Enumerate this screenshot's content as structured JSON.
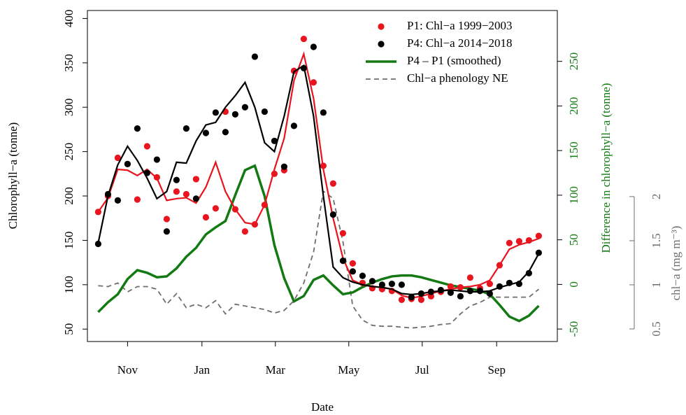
{
  "chart_data": {
    "type": "line",
    "xlabel": "Date",
    "ylabel": "Chlorophyll−a (tonne)",
    "y2label": "Difference in chlorophyll−a (tonne)",
    "y3label": "chl−a  (mg m⁻³)",
    "x": [
      1,
      2,
      3,
      4,
      5,
      6,
      7,
      8,
      9,
      10,
      11,
      12,
      13,
      14,
      15,
      16,
      17,
      18,
      19,
      20,
      21,
      22,
      23,
      24,
      25,
      26,
      27,
      28,
      29,
      30,
      31,
      32,
      33,
      34,
      35,
      36,
      37,
      38,
      39,
      40,
      41,
      42,
      43,
      44,
      45,
      46
    ],
    "xlim": [
      -0.1,
      47.9
    ],
    "xticks": [
      {
        "value": 4,
        "label": "Nov"
      },
      {
        "value": 11.6,
        "label": "Jan"
      },
      {
        "value": 19.1,
        "label": "Mar"
      },
      {
        "value": 26.6,
        "label": "May"
      },
      {
        "value": 34.1,
        "label": "Jul"
      },
      {
        "value": 41.7,
        "label": "Sep"
      }
    ],
    "ylim": [
      36,
      409
    ],
    "yticks": [
      50,
      100,
      150,
      200,
      250,
      300,
      350,
      400
    ],
    "y2lim": [
      -64,
      307
    ],
    "y2ticks": [
      -50,
      0,
      50,
      100,
      150,
      200,
      250
    ],
    "y3lim": [
      0.357,
      4.11
    ],
    "y3ticks": [
      0.5,
      1,
      1.5,
      2
    ],
    "legend": "top-right",
    "series": [
      {
        "name": "P1: Chl−a 1999−2003",
        "color": "#e8141e",
        "style": "points",
        "values": [
          182,
          200,
          243,
          236,
          196,
          256,
          221,
          174,
          205,
          202,
          219,
          176,
          186,
          295,
          185,
          160,
          168,
          190,
          225,
          229,
          341,
          377,
          328,
          234,
          214,
          158,
          124,
          102,
          96,
          95,
          93,
          83,
          84,
          83,
          87,
          92,
          98,
          97,
          108,
          96,
          101,
          122,
          147,
          149,
          150,
          155
        ],
        "line_values": [
          182,
          198,
          230,
          229,
          223,
          230,
          220,
          195,
          197,
          198,
          192,
          210,
          238,
          205,
          185,
          170,
          168,
          190,
          230,
          265,
          330,
          360,
          310,
          230,
          175,
          130,
          105,
          100,
          98,
          97,
          95,
          88,
          85,
          87,
          90,
          93,
          95,
          97,
          98,
          100,
          105,
          122,
          140,
          145,
          148,
          152
        ]
      },
      {
        "name": "P4: Chl−a 2014−2018",
        "color": "#000000",
        "style": "points",
        "values": [
          146,
          202,
          195,
          236,
          276,
          226,
          241,
          160,
          218,
          276,
          197,
          271,
          294,
          272,
          292,
          300,
          357,
          295,
          262,
          233,
          279,
          344,
          368,
          294,
          179,
          127,
          115,
          110,
          104,
          100,
          101,
          100,
          86,
          90,
          92,
          94,
          91,
          87,
          93,
          93,
          90,
          98,
          102,
          101,
          113,
          136
        ],
        "line_values": [
          147,
          200,
          235,
          256,
          240,
          220,
          197,
          205,
          238,
          237,
          262,
          280,
          283,
          300,
          313,
          328,
          300,
          260,
          250,
          290,
          340,
          347,
          290,
          200,
          120,
          108,
          103,
          100,
          98,
          97,
          95,
          90,
          89,
          90,
          92,
          93,
          94,
          93,
          92,
          92,
          93,
          97,
          100,
          103,
          115,
          135
        ]
      },
      {
        "name": "P4 – P1 (smoothed)",
        "color": "#137a13",
        "style": "line",
        "axis": "y2",
        "values": [
          -31,
          -20,
          -11,
          6,
          16,
          13,
          8,
          9,
          18,
          31,
          41,
          56,
          64,
          71,
          100,
          128,
          133,
          99,
          44,
          7,
          -19,
          -13,
          5,
          10,
          -1,
          -11,
          -9,
          -3,
          2,
          6,
          9,
          10,
          10,
          8,
          5,
          2,
          -1,
          -3,
          -5,
          -7,
          -11,
          -23,
          -36,
          -41,
          -35,
          -24
        ]
      },
      {
        "name": "Chl−a phenology NE",
        "color": "#6e6e6e",
        "style": "dashed",
        "axis": "y3",
        "values": [
          0.99,
          0.98,
          1.02,
          0.92,
          0.98,
          0.98,
          0.95,
          0.78,
          0.9,
          0.74,
          0.78,
          0.74,
          0.82,
          0.67,
          0.78,
          0.76,
          0.74,
          0.72,
          0.68,
          0.71,
          0.82,
          1.02,
          1.37,
          2.06,
          1.98,
          1.49,
          0.76,
          0.6,
          0.54,
          0.53,
          0.53,
          0.52,
          0.51,
          0.52,
          0.53,
          0.55,
          0.56,
          0.67,
          0.76,
          0.8,
          0.86,
          0.86,
          0.86,
          0.86,
          0.86,
          0.95
        ]
      }
    ]
  }
}
